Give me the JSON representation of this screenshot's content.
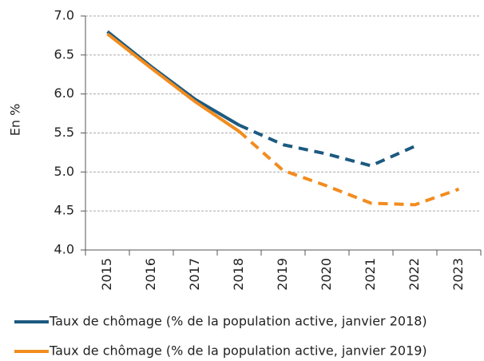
{
  "chart_data": {
    "type": "line",
    "y_label": "En %",
    "categories": [
      "2015",
      "2016",
      "2017",
      "2018",
      "2019",
      "2020",
      "2021",
      "2022",
      "2023"
    ],
    "series": [
      {
        "name": "Taux de chômage (% de la population active, janvier 2018)",
        "color": "#1c5a80",
        "dashed_from": 3,
        "values": [
          6.8,
          6.35,
          5.93,
          5.6,
          5.35,
          5.23,
          5.08,
          5.33,
          null
        ]
      },
      {
        "name": "Taux de chômage (% de la population active, janvier 2019)",
        "color": "#f28c1e",
        "dashed_from": 3,
        "values": [
          6.77,
          6.33,
          5.9,
          5.52,
          5.02,
          4.82,
          4.6,
          4.58,
          4.78
        ]
      }
    ],
    "ylim": [
      4.0,
      7.0
    ],
    "yticks": [
      {
        "value": 4,
        "label": "4.0"
      },
      {
        "value": 4.5,
        "label": "4.5"
      },
      {
        "value": 5,
        "label": "5.0"
      },
      {
        "value": 5.5,
        "label": "5.5"
      },
      {
        "value": 6,
        "label": "6.0"
      },
      {
        "value": 6.5,
        "label": "6.5"
      },
      {
        "value": 7,
        "label": "7.0"
      }
    ],
    "grid": true,
    "legend": "bottom"
  }
}
